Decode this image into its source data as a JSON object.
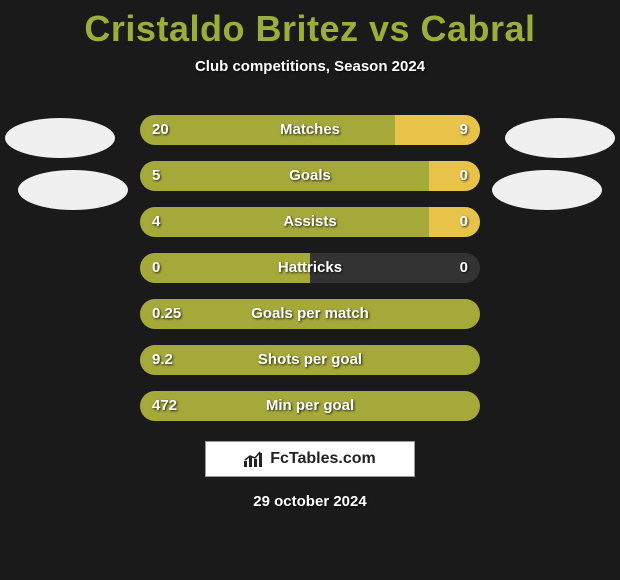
{
  "header": {
    "title": "Cristaldo Britez vs Cabral",
    "subtitle": "Club competitions, Season 2024"
  },
  "colors": {
    "player1": "#a5a93a",
    "player2": "#e7c34a",
    "bg": "#1a1a1a",
    "row_bg": "#333333"
  },
  "rows": [
    {
      "label": "Matches",
      "left_val": "20",
      "right_val": "9",
      "left_pct": 75,
      "right_pct": 25
    },
    {
      "label": "Goals",
      "left_val": "5",
      "right_val": "0",
      "left_pct": 85,
      "right_pct": 15
    },
    {
      "label": "Assists",
      "left_val": "4",
      "right_val": "0",
      "left_pct": 85,
      "right_pct": 15
    },
    {
      "label": "Hattricks",
      "left_val": "0",
      "right_val": "0",
      "left_pct": 50,
      "right_pct": 0
    },
    {
      "label": "Goals per match",
      "left_val": "0.25",
      "right_val": "",
      "left_pct": 100,
      "right_pct": 0
    },
    {
      "label": "Shots per goal",
      "left_val": "9.2",
      "right_val": "",
      "left_pct": 100,
      "right_pct": 0
    },
    {
      "label": "Min per goal",
      "left_val": "472",
      "right_val": "",
      "left_pct": 100,
      "right_pct": 0
    }
  ],
  "branding": "FcTables.com",
  "date": "29 october 2024"
}
